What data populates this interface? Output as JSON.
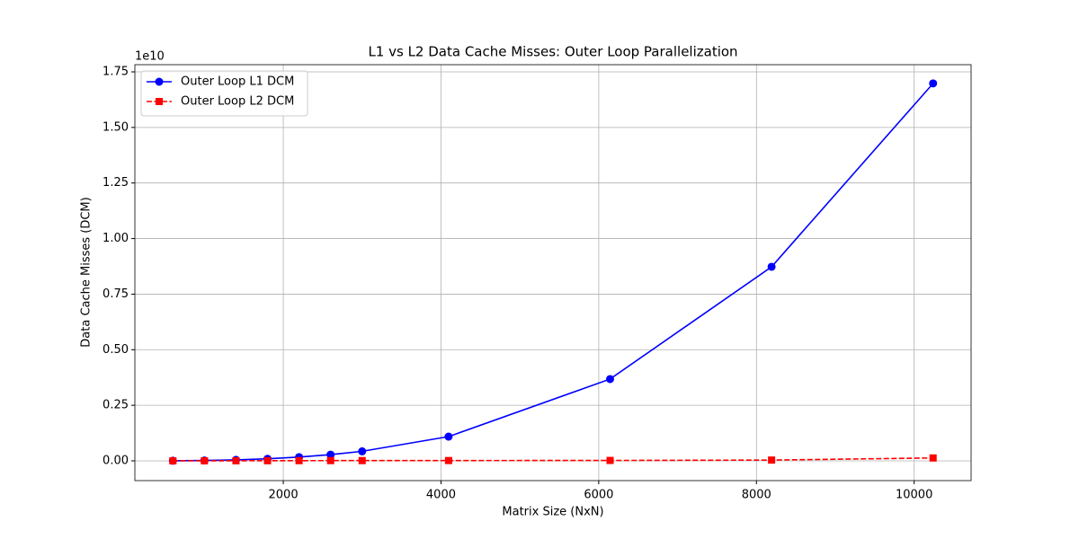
{
  "chart_data": {
    "type": "line",
    "title": "L1 vs L2 Data Cache Misses: Outer Loop Parallelization",
    "x_label": "Matrix Size (NxN)",
    "y_label": "Data Cache Misses (DCM)",
    "y_offset_text": "1e10",
    "x": [
      600,
      1000,
      1400,
      1800,
      2200,
      2600,
      3000,
      4096,
      6144,
      8192,
      10240
    ],
    "series": [
      {
        "name": "Outer Loop L1 DCM",
        "color": "#0000ff",
        "linestyle": "solid",
        "marker": "circle",
        "values": [
          3400000,
          16000000,
          44000000,
          93000000,
          169000000,
          279000000,
          429000000,
          1090000000,
          3680000000,
          8730000000,
          16980000000
        ]
      },
      {
        "name": "Outer Loop L2 DCM",
        "color": "#ff0000",
        "linestyle": "dashed",
        "marker": "square",
        "values": [
          500000,
          2000000,
          4000000,
          7000000,
          9000000,
          11000000,
          12000000,
          14000000,
          18000000,
          35000000,
          130000000
        ]
      }
    ],
    "xlim": [
      118,
      10722
    ],
    "xticks": [
      2000,
      4000,
      6000,
      8000,
      10000
    ],
    "ylim": [
      -889000000,
      17823000000
    ],
    "yticks": [
      {
        "value": 0,
        "label": "0.00"
      },
      {
        "value": 2500000000,
        "label": "0.25"
      },
      {
        "value": 5000000000,
        "label": "0.50"
      },
      {
        "value": 7500000000,
        "label": "0.75"
      },
      {
        "value": 10000000000,
        "label": "1.00"
      },
      {
        "value": 12500000000,
        "label": "1.25"
      },
      {
        "value": 15000000000,
        "label": "1.50"
      },
      {
        "value": 17500000000,
        "label": "1.75"
      }
    ],
    "grid": true,
    "legend": "upper left"
  }
}
